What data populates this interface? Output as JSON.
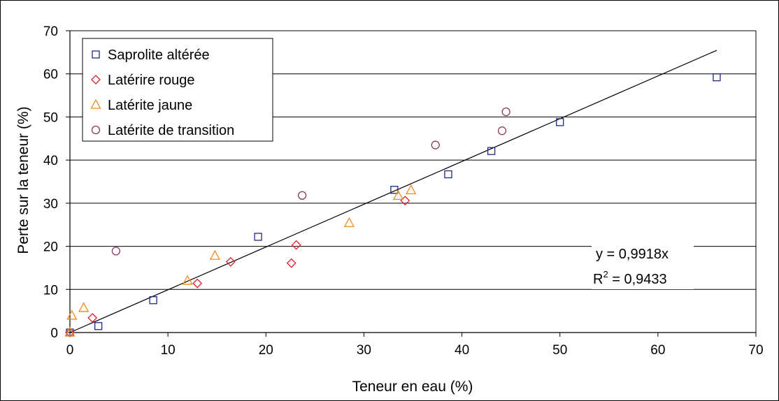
{
  "chart_data": {
    "type": "scatter",
    "xlabel": "Teneur en eau (%)",
    "ylabel": "Perte sur la teneur (%)",
    "xlim": [
      0,
      70
    ],
    "ylim": [
      0,
      70
    ],
    "xticks": [
      0,
      10,
      20,
      30,
      40,
      50,
      60,
      70
    ],
    "yticks": [
      0,
      10,
      20,
      30,
      40,
      50,
      60,
      70
    ],
    "grid": "horizontal",
    "legend_position": "top-left",
    "series": [
      {
        "name": "Saprolite altérée",
        "marker": "square",
        "color": "#1f2a80",
        "points": [
          [
            0,
            0
          ],
          [
            2.9,
            1.5
          ],
          [
            8.5,
            7.5
          ],
          [
            19.2,
            22.2
          ],
          [
            33.1,
            33.1
          ],
          [
            38.6,
            36.7
          ],
          [
            43,
            42.1
          ],
          [
            50,
            48.8
          ],
          [
            66,
            59.2
          ]
        ]
      },
      {
        "name": "Latérire rouge",
        "marker": "diamond",
        "color": "#e0202a",
        "points": [
          [
            0,
            0
          ],
          [
            2.3,
            3.4
          ],
          [
            13,
            11.4
          ],
          [
            16.4,
            16.4
          ],
          [
            22.6,
            16.1
          ],
          [
            23.1,
            20.3
          ],
          [
            34.2,
            30.6
          ]
        ]
      },
      {
        "name": "Latérite jaune",
        "marker": "triangle",
        "color": "#f08a1e",
        "points": [
          [
            0,
            0
          ],
          [
            0.2,
            3.9
          ],
          [
            1.4,
            5.7
          ],
          [
            12,
            12
          ],
          [
            14.8,
            17.8
          ],
          [
            28.5,
            25.4
          ],
          [
            33.5,
            31.7
          ],
          [
            34.8,
            33
          ]
        ]
      },
      {
        "name": "Latérite de transition",
        "marker": "circle",
        "color": "#8a3a5e",
        "points": [
          [
            4.7,
            18.9
          ],
          [
            23.7,
            31.8
          ],
          [
            37.3,
            43.5
          ],
          [
            44.1,
            46.8
          ],
          [
            44.5,
            51.2
          ]
        ]
      }
    ],
    "trendline": {
      "slope": 0.9918,
      "x_range": [
        0,
        66
      ],
      "color": "#000000",
      "equation": "y = 0,9918x",
      "r2_label": "R",
      "r2_sup": "2",
      "r2_value": " = 0,9433"
    }
  }
}
